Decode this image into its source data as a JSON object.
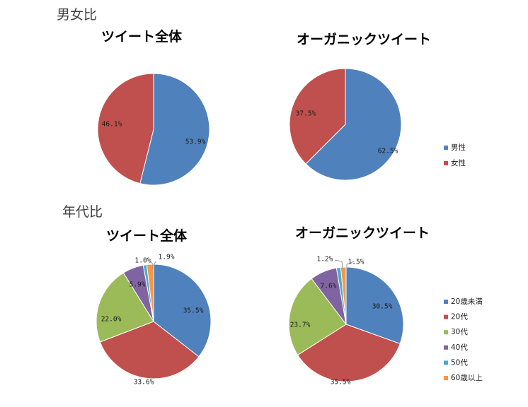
{
  "sections": {
    "gender": "男女比",
    "age": "年代比"
  },
  "colors": {
    "男性": "#4F81BD",
    "女性": "#C0504D",
    "20歳未満": "#4F81BD",
    "20代": "#C0504D",
    "30代": "#9BBB59",
    "40代": "#8064A2",
    "50代": "#4BACC6",
    "60歳以上": "#F79646"
  },
  "legends": {
    "gender": [
      "男性",
      "女性"
    ],
    "age": [
      "20歳未満",
      "20代",
      "30代",
      "40代",
      "50代",
      "60歳以上"
    ]
  },
  "chart_data": [
    {
      "type": "pie",
      "title": "ツイート全体",
      "group": "gender",
      "categories": [
        "男性",
        "女性"
      ],
      "values": [
        53.9,
        46.1
      ],
      "labels": [
        "53.9%",
        "46.1%"
      ]
    },
    {
      "type": "pie",
      "title": "オーガニックツイート",
      "group": "gender",
      "categories": [
        "男性",
        "女性"
      ],
      "values": [
        62.5,
        37.5
      ],
      "labels": [
        "62.5%",
        "37.5%"
      ]
    },
    {
      "type": "pie",
      "title": "ツイート全体",
      "group": "age",
      "categories": [
        "20歳未満",
        "20代",
        "30代",
        "40代",
        "50代",
        "60歳以上"
      ],
      "values": [
        35.5,
        33.6,
        22.0,
        5.9,
        1.0,
        1.9
      ],
      "labels": [
        "35.5%",
        "33.6%",
        "22.0%",
        "5.9%",
        "1.0%",
        "1.9%"
      ]
    },
    {
      "type": "pie",
      "title": "オーガニックツイート",
      "group": "age",
      "categories": [
        "20歳未満",
        "20代",
        "30代",
        "40代",
        "50代",
        "60歳以上"
      ],
      "values": [
        30.5,
        35.5,
        23.7,
        7.6,
        1.2,
        1.5
      ],
      "labels": [
        "30.5%",
        "35.5%",
        "23.7%",
        "7.6%",
        "1.2%",
        "1.5%"
      ]
    }
  ]
}
